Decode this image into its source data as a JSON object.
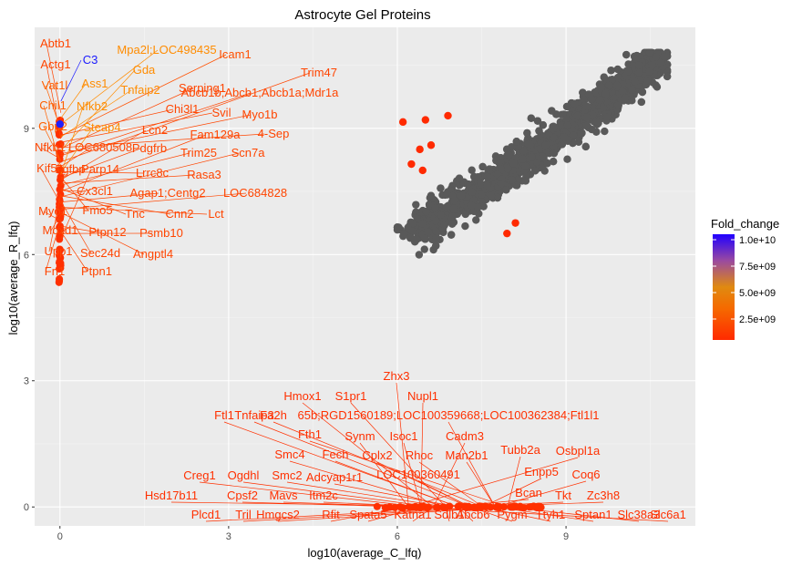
{
  "chart_data": {
    "type": "scatter",
    "title": "Astrocyte Gel Proteins",
    "xlabel": "log10(average_C_lfq)",
    "ylabel": "log10(average_R_lfq)",
    "xlim": [
      -0.45,
      11.3
    ],
    "ylim": [
      -0.45,
      11.4
    ],
    "x_ticks": [
      0,
      3,
      6,
      9
    ],
    "y_ticks": [
      0,
      3,
      6,
      9
    ],
    "grid": true,
    "background": "#ebebeb",
    "legend": {
      "title": "Fold_change",
      "position": "right",
      "min": 0,
      "max": 10000000000.0,
      "ticks": [
        {
          "value": 10000000000.0,
          "label": "1.0e+10"
        },
        {
          "value": 7500000000.0,
          "label": "7.5e+09"
        },
        {
          "value": 5000000000.0,
          "label": "5.0e+09"
        },
        {
          "value": 2500000000.0,
          "label": "2.5e+09"
        }
      ],
      "colors": [
        "#ff2a00",
        "#f47a00",
        "#e08a10",
        "#a040a0",
        "#2000ff"
      ]
    },
    "main_cluster": {
      "color": "#595959",
      "approx_count": 1800,
      "x_range": [
        6.0,
        10.8
      ],
      "y_range": [
        6.0,
        10.8
      ],
      "correlation": "strong positive, near diagonal"
    },
    "highlight_points": [
      {
        "x": 0.0,
        "y": 9.1,
        "color": "#2020ff"
      },
      {
        "x": 6.1,
        "y": 9.15,
        "color": "#ff2a00"
      },
      {
        "x": 6.5,
        "y": 9.2,
        "color": "#ff2a00"
      },
      {
        "x": 6.9,
        "y": 9.3,
        "color": "#ff2a00"
      },
      {
        "x": 6.4,
        "y": 8.5,
        "color": "#ff2a00"
      },
      {
        "x": 6.6,
        "y": 8.6,
        "color": "#ff2a00"
      },
      {
        "x": 6.25,
        "y": 8.15,
        "color": "#ff2a00"
      },
      {
        "x": 6.45,
        "y": 8.0,
        "color": "#ff2a00"
      },
      {
        "x": 8.1,
        "y": 6.75,
        "color": "#ff2a00"
      },
      {
        "x": 7.95,
        "y": 6.5,
        "color": "#ff2a00"
      }
    ],
    "left_column": {
      "x": 0.0,
      "y_range": [
        5.3,
        9.2
      ],
      "color": "#ff3000"
    },
    "bottom_row": {
      "y": 0.0,
      "x_range": [
        5.4,
        8.6
      ],
      "color": "#ff3000"
    },
    "left_labels": [
      {
        "text": "C3",
        "color": "#1a1aff",
        "ax": 0.0,
        "ay": 9.1
      },
      {
        "text": "Abtb1",
        "color": "#ff4500",
        "ax": 0.0,
        "ay": 9.0
      },
      {
        "text": "Mpa2l;LOC498435",
        "color": "#ff8c00",
        "ax": 0.0,
        "ay": 8.9
      },
      {
        "text": "Icam1",
        "color": "#ff5000",
        "ax": 0.0,
        "ay": 8.8
      },
      {
        "text": "Actg1",
        "color": "#ff4500",
        "ax": 0.0,
        "ay": 8.9
      },
      {
        "text": "Gda",
        "color": "#ff8c00",
        "ax": 0.0,
        "ay": 8.8
      },
      {
        "text": "Trim47",
        "color": "#ff4500",
        "ax": 0.0,
        "ay": 8.7
      },
      {
        "text": "Ass1",
        "color": "#ff8c00",
        "ax": 0.0,
        "ay": 8.7
      },
      {
        "text": "Vat1l",
        "color": "#ff6000",
        "ax": 0.0,
        "ay": 8.6
      },
      {
        "text": "Tnfaip2",
        "color": "#ff8c00",
        "ax": 0.0,
        "ay": 8.6
      },
      {
        "text": "Serping1",
        "color": "#ff4500",
        "ax": 0.0,
        "ay": 8.5
      },
      {
        "text": "Abcb1b;Abcb1;Abcb1a;Mdr1a",
        "color": "#ff4500",
        "ax": 0.0,
        "ay": 8.5
      },
      {
        "text": "Chil1",
        "color": "#ff6000",
        "ax": 0.0,
        "ay": 8.4
      },
      {
        "text": "Nfkb2",
        "color": "#ff8c00",
        "ax": 0.0,
        "ay": 8.4
      },
      {
        "text": "Chi3l1",
        "color": "#ff4500",
        "ax": 0.0,
        "ay": 8.3
      },
      {
        "text": "Svil",
        "color": "#ff4500",
        "ax": 0.0,
        "ay": 8.3
      },
      {
        "text": "Myo1b",
        "color": "#ff4500",
        "ax": 0.0,
        "ay": 8.2
      },
      {
        "text": "Gbp2",
        "color": "#ff6000",
        "ax": 0.0,
        "ay": 8.2
      },
      {
        "text": "Steap4",
        "color": "#ff8c00",
        "ax": 0.0,
        "ay": 8.1
      },
      {
        "text": "Lcn2",
        "color": "#ff4500",
        "ax": 0.0,
        "ay": 8.1
      },
      {
        "text": "Fam129a",
        "color": "#ff4500",
        "ax": 0.0,
        "ay": 8.0
      },
      {
        "text": "4-Sep",
        "color": "#ff4500",
        "ax": 0.0,
        "ay": 8.0
      },
      {
        "text": "Nfkb1",
        "color": "#ff4500",
        "ax": 0.0,
        "ay": 7.9
      },
      {
        "text": "LOC680508",
        "color": "#ff4500",
        "ax": 0.0,
        "ay": 7.9
      },
      {
        "text": "Pdgfrb",
        "color": "#ff4500",
        "ax": 0.0,
        "ay": 7.8
      },
      {
        "text": "Trim25",
        "color": "#ff4500",
        "ax": 0.0,
        "ay": 7.8
      },
      {
        "text": "Scn7a",
        "color": "#ff4500",
        "ax": 0.0,
        "ay": 7.7
      },
      {
        "text": "Kif5b",
        "color": "#ff4500",
        "ax": 0.0,
        "ay": 7.7
      },
      {
        "text": "Fgfbp",
        "color": "#ff4500",
        "ax": 0.0,
        "ay": 7.6
      },
      {
        "text": "Lrrc8c",
        "color": "#ff4500",
        "ax": 0.0,
        "ay": 7.6
      },
      {
        "text": "Rasa3",
        "color": "#ff4500",
        "ax": 0.0,
        "ay": 7.5
      },
      {
        "text": "Cx3cl1",
        "color": "#ff4500",
        "ax": 0.0,
        "ay": 7.5
      },
      {
        "text": "Agap1;Centg2",
        "color": "#ff4500",
        "ax": 0.0,
        "ay": 7.4
      },
      {
        "text": "LOC684828",
        "color": "#ff4500",
        "ax": 0.0,
        "ay": 7.4
      },
      {
        "text": "Myo1",
        "color": "#ff4500",
        "ax": 0.0,
        "ay": 7.3
      },
      {
        "text": "Fmo5",
        "color": "#ff4500",
        "ax": 0.0,
        "ay": 7.3
      },
      {
        "text": "Tnc",
        "color": "#ff4500",
        "ax": 0.0,
        "ay": 7.2
      },
      {
        "text": "Cnn2",
        "color": "#ff4500",
        "ax": 0.0,
        "ay": 7.2
      },
      {
        "text": "Lct",
        "color": "#ff4500",
        "ax": 0.0,
        "ay": 7.1
      },
      {
        "text": "Moxd1",
        "color": "#ff4500",
        "ax": 0.0,
        "ay": 7.1
      },
      {
        "text": "Ptpn12",
        "color": "#ff4500",
        "ax": 0.0,
        "ay": 7.0
      },
      {
        "text": "Psmb10",
        "color": "#ff4500",
        "ax": 0.0,
        "ay": 7.0
      },
      {
        "text": "Upp1",
        "color": "#ff4500",
        "ax": 0.0,
        "ay": 6.9
      },
      {
        "text": "Sec24d",
        "color": "#ff4500",
        "ax": 0.0,
        "ay": 6.9
      },
      {
        "text": "Angptl4",
        "color": "#ff4500",
        "ax": 0.0,
        "ay": 6.8
      },
      {
        "text": "Fn1",
        "color": "#ff4500",
        "ax": 0.0,
        "ay": 6.8
      },
      {
        "text": "Ptpn1",
        "color": "#ff4500",
        "ax": 0.0,
        "ay": 6.7
      },
      {
        "text": "Parp14",
        "color": "#ff4500",
        "ax": 0.0,
        "ay": 6.7
      }
    ],
    "bottom_labels": [
      {
        "text": "Zhx3",
        "ax": 7.5,
        "ay": 0.0
      },
      {
        "text": "Nupl1",
        "ax": 7.5,
        "ay": 0.0
      },
      {
        "text": "Hmox1",
        "ax": 7.5,
        "ay": 0.0
      },
      {
        "text": "S1pr1",
        "ax": 7.5,
        "ay": 0.0
      },
      {
        "text": "Ftl1",
        "ax": 7.5,
        "ay": 0.0
      },
      {
        "text": "Tnfaip3",
        "ax": 7.5,
        "ay": 0.0
      },
      {
        "text": "Fa2h",
        "ax": 7.5,
        "ay": 0.0
      },
      {
        "text": "65b;RGD1560189;LOC100359668;LOC100362384;Ftl1l1",
        "ax": 7.5,
        "ay": 0.0
      },
      {
        "text": "Fth1",
        "ax": 7.5,
        "ay": 0.0
      },
      {
        "text": "Synm",
        "ax": 7.5,
        "ay": 0.0
      },
      {
        "text": "Isoc1",
        "ax": 7.5,
        "ay": 0.0
      },
      {
        "text": "Cadm3",
        "ax": 7.5,
        "ay": 0.0
      },
      {
        "text": "Smc4",
        "ax": 7.5,
        "ay": 0.0
      },
      {
        "text": "Fech",
        "ax": 7.5,
        "ay": 0.0
      },
      {
        "text": "Cplx2",
        "ax": 7.5,
        "ay": 0.0
      },
      {
        "text": "Rhoc",
        "ax": 7.5,
        "ay": 0.0
      },
      {
        "text": "Man2b1",
        "ax": 7.5,
        "ay": 0.0
      },
      {
        "text": "Tubb2a",
        "ax": 7.5,
        "ay": 0.0
      },
      {
        "text": "Osbpl1a",
        "ax": 7.5,
        "ay": 0.0
      },
      {
        "text": "Creg1",
        "ax": 7.5,
        "ay": 0.0
      },
      {
        "text": "Ogdhl",
        "ax": 7.5,
        "ay": 0.0
      },
      {
        "text": "Smc2",
        "ax": 7.5,
        "ay": 0.0
      },
      {
        "text": "Adcyap1r1",
        "ax": 7.5,
        "ay": 0.0
      },
      {
        "text": "LOC100360491",
        "ax": 7.5,
        "ay": 0.0
      },
      {
        "text": "Enpp5",
        "ax": 7.5,
        "ay": 0.0
      },
      {
        "text": "Coq6",
        "ax": 7.5,
        "ay": 0.0
      },
      {
        "text": "Hsd17b11",
        "ax": 7.5,
        "ay": 0.0
      },
      {
        "text": "Cpsf2",
        "ax": 7.5,
        "ay": 0.0
      },
      {
        "text": "Mavs",
        "ax": 7.5,
        "ay": 0.0
      },
      {
        "text": "Itm2c",
        "ax": 7.5,
        "ay": 0.0
      },
      {
        "text": "Bcan",
        "ax": 7.5,
        "ay": 0.0
      },
      {
        "text": "Tkt",
        "ax": 7.5,
        "ay": 0.0
      },
      {
        "text": "Zc3h8",
        "ax": 7.5,
        "ay": 0.0
      },
      {
        "text": "Plcd1",
        "ax": 7.5,
        "ay": 0.0
      },
      {
        "text": "Tril",
        "ax": 7.5,
        "ay": 0.0
      },
      {
        "text": "Hmgcs2",
        "ax": 7.5,
        "ay": 0.0
      },
      {
        "text": "Rfit",
        "ax": 7.5,
        "ay": 0.0
      },
      {
        "text": "Spata5",
        "ax": 7.5,
        "ay": 0.0
      },
      {
        "text": "Katna1",
        "ax": 7.5,
        "ay": 0.0
      },
      {
        "text": "Sdlb1",
        "ax": 7.5,
        "ay": 0.0
      },
      {
        "text": "Abcb6",
        "ax": 7.5,
        "ay": 0.0
      },
      {
        "text": "Pygm",
        "ax": 7.5,
        "ay": 0.0
      },
      {
        "text": "Ttyh1",
        "ax": 7.5,
        "ay": 0.0
      },
      {
        "text": "Sptan1",
        "ax": 7.5,
        "ay": 0.0
      },
      {
        "text": "Slc38a3",
        "ax": 7.5,
        "ay": 0.0
      },
      {
        "text": "Slc6a1",
        "ax": 7.5,
        "ay": 0.0
      }
    ]
  }
}
